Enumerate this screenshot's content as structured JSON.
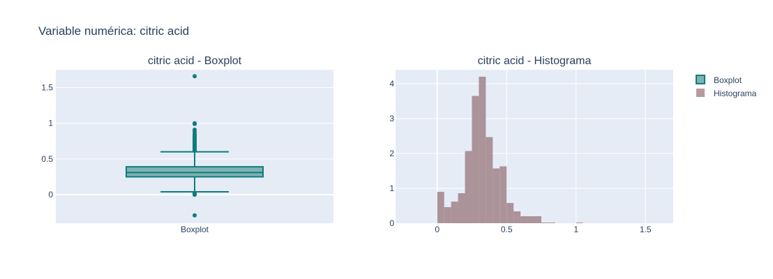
{
  "title": "Variable numérica: citric acid",
  "chart_data": [
    {
      "type": "box",
      "title": "citric acid - Boxplot",
      "categories": [
        "Boxplot"
      ],
      "ylim": [
        -0.4,
        1.75
      ],
      "y_ticks": [
        0,
        0.5,
        1,
        1.5
      ],
      "y_tick_labels": [
        "0",
        "0.5",
        "1",
        "1.5"
      ],
      "grid": true,
      "box": {
        "name": "Boxplot",
        "q1": 0.25,
        "median": 0.31,
        "q3": 0.39,
        "lowerfence": 0.04,
        "upperfence": 0.6
      },
      "outliers": [
        -0.29,
        0.0,
        0.005,
        0.01,
        0.015,
        0.02,
        0.615,
        0.625,
        0.635,
        0.645,
        0.655,
        0.665,
        0.675,
        0.685,
        0.695,
        0.705,
        0.72,
        0.735,
        0.75,
        0.765,
        0.78,
        0.795,
        0.81,
        0.83,
        0.85,
        0.88,
        0.91,
        0.99,
        1.0,
        1.66
      ],
      "color": "#0e7c7b"
    },
    {
      "type": "bar",
      "title": "citric acid - Histograma",
      "bin_width": 0.05,
      "x_bin_starts": [
        0.0,
        0.05,
        0.1,
        0.15,
        0.2,
        0.25,
        0.3,
        0.35,
        0.4,
        0.45,
        0.5,
        0.55,
        0.6,
        0.65,
        0.7,
        0.75,
        0.8,
        0.85,
        0.9,
        0.95,
        1.0
      ],
      "values": [
        0.9,
        0.46,
        0.62,
        0.86,
        2.07,
        3.65,
        4.2,
        2.47,
        1.57,
        1.63,
        0.58,
        0.34,
        0.2,
        0.2,
        0.2,
        0.02,
        0.02,
        0.0,
        0.0,
        0.0,
        0.02
      ],
      "xlim": [
        -0.3,
        1.7
      ],
      "ylim": [
        0,
        4.4
      ],
      "x_ticks": [
        0,
        0.5,
        1,
        1.5
      ],
      "x_tick_labels": [
        "0",
        "0.5",
        "1",
        "1.5"
      ],
      "y_ticks": [
        0,
        1,
        2,
        3,
        4
      ],
      "y_tick_labels": [
        "0",
        "1",
        "2",
        "3",
        "4"
      ],
      "grid": true,
      "color": "#a48a8f"
    }
  ],
  "legend": {
    "placement": "top-right",
    "items": [
      {
        "label": "Boxplot",
        "fill": "#7fb3b2",
        "stroke": "#0e7c7b"
      },
      {
        "label": "Histograma",
        "fill": "#b69a9f",
        "stroke": "none"
      }
    ]
  }
}
